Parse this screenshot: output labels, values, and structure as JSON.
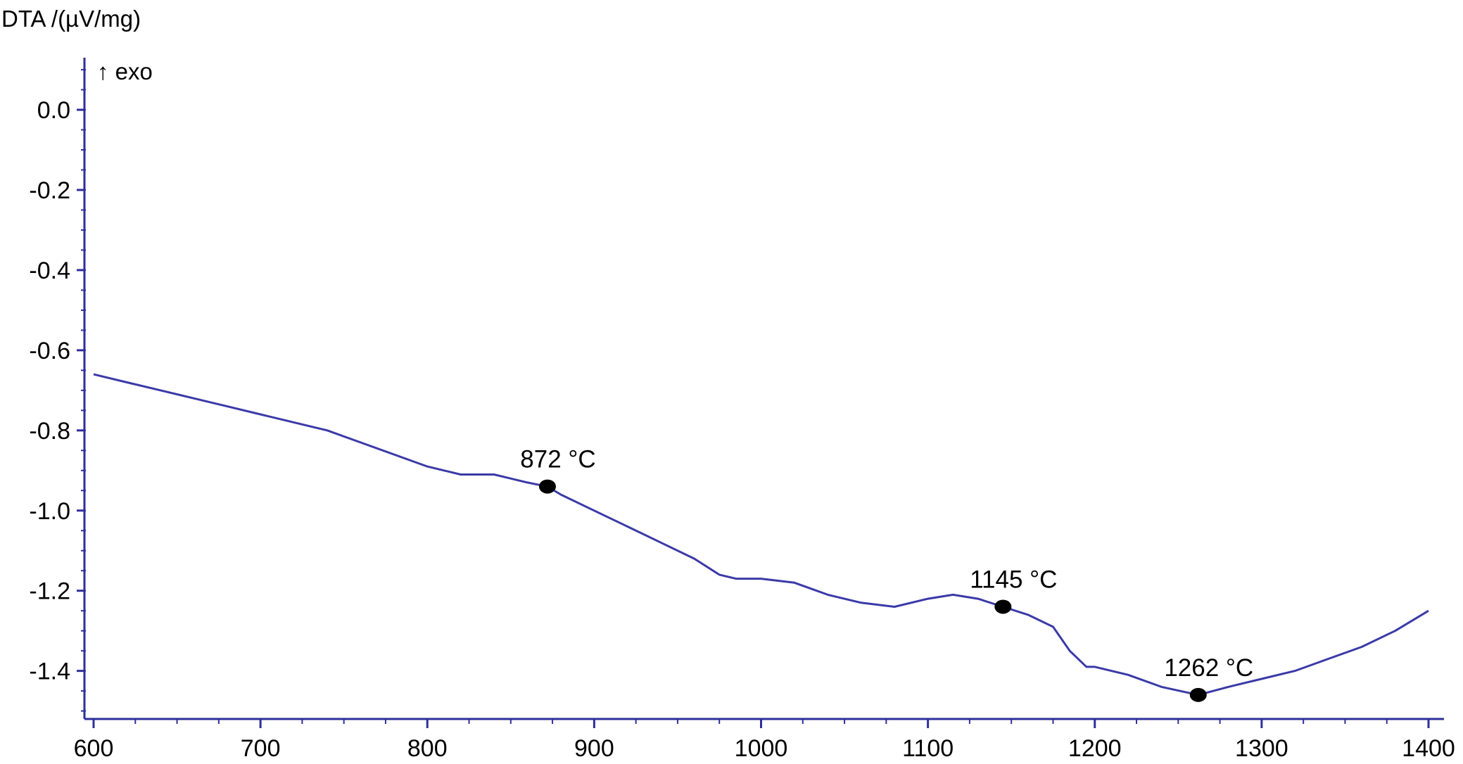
{
  "chart_data": {
    "type": "line",
    "ylabel": "DTA /(µV/mg)",
    "direction_note": "↑ exo",
    "xlim": [
      600,
      1400
    ],
    "ylim": [
      -1.52,
      0.13
    ],
    "xticks": [
      600,
      700,
      800,
      900,
      1000,
      1100,
      1200,
      1300,
      1400
    ],
    "yticks": [
      0.0,
      -0.2,
      -0.4,
      -0.6,
      -0.8,
      -1.0,
      -1.2,
      -1.4
    ],
    "ytick_labels": [
      "0.0",
      "-0.2",
      "-0.4",
      "-0.6",
      "-0.8",
      "-1.0",
      "-1.2",
      "-1.4"
    ],
    "line_color": "#3a3aa8",
    "marker_color": "#000000",
    "series": [
      {
        "x": [
          600,
          620,
          640,
          660,
          680,
          700,
          720,
          740,
          760,
          780,
          800,
          810,
          820,
          830,
          840,
          850,
          860,
          872,
          880,
          900,
          920,
          940,
          960,
          975,
          985,
          1000,
          1020,
          1040,
          1060,
          1080,
          1100,
          1115,
          1130,
          1145,
          1160,
          1175,
          1185,
          1195,
          1200,
          1220,
          1240,
          1262,
          1280,
          1300,
          1320,
          1340,
          1360,
          1380,
          1400
        ],
        "y": [
          -0.66,
          -0.68,
          -0.7,
          -0.72,
          -0.74,
          -0.76,
          -0.78,
          -0.8,
          -0.83,
          -0.86,
          -0.89,
          -0.9,
          -0.91,
          -0.91,
          -0.91,
          -0.92,
          -0.93,
          -0.94,
          -0.96,
          -1.0,
          -1.04,
          -1.08,
          -1.12,
          -1.16,
          -1.17,
          -1.17,
          -1.18,
          -1.21,
          -1.23,
          -1.24,
          -1.22,
          -1.21,
          -1.22,
          -1.24,
          -1.26,
          -1.29,
          -1.35,
          -1.39,
          -1.39,
          -1.41,
          -1.44,
          -1.46,
          -1.44,
          -1.42,
          -1.4,
          -1.37,
          -1.34,
          -1.3,
          -1.25
        ]
      }
    ],
    "annotations": [
      {
        "x": 872,
        "y": -0.94,
        "label": "872 °C"
      },
      {
        "x": 1145,
        "y": -1.24,
        "label": "1145 °C"
      },
      {
        "x": 1262,
        "y": -1.46,
        "label": "1262 °C"
      }
    ]
  }
}
